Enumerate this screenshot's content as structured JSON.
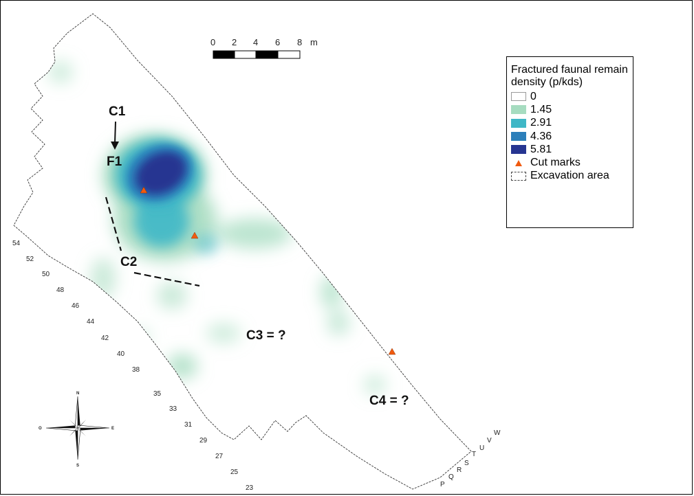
{
  "legend": {
    "title": "Fractured faunal remain density (p/kds)",
    "classes": [
      {
        "label": "0",
        "color": "#ffffff"
      },
      {
        "label": "1.45",
        "color": "#a6dcc0"
      },
      {
        "label": "2.91",
        "color": "#3fb7c6"
      },
      {
        "label": "4.36",
        "color": "#2c7fba"
      },
      {
        "label": "5.81",
        "color": "#263591"
      }
    ],
    "cut_marks_label": "Cut marks",
    "cut_marks_color": "#f05a0f",
    "excavation_label": "Excavation area"
  },
  "scale_bar": {
    "ticks": [
      "0",
      "2",
      "4",
      "6",
      "8"
    ],
    "unit": "m"
  },
  "annotations": {
    "c1": "C1",
    "f1": "F1",
    "c2": "C2",
    "c3": "C3 = ?",
    "c4": "C4 = ?"
  },
  "grid_left": [
    "54",
    "52",
    "50",
    "48",
    "46",
    "44",
    "42",
    "40",
    "38",
    "35",
    "33",
    "31",
    "29",
    "27",
    "25",
    "23"
  ],
  "grid_bottom": [
    "P",
    "Q",
    "R",
    "S",
    "T",
    "U",
    "V",
    "W"
  ],
  "compass": {
    "n": "N",
    "s": "S",
    "e": "E",
    "w": "O"
  }
}
